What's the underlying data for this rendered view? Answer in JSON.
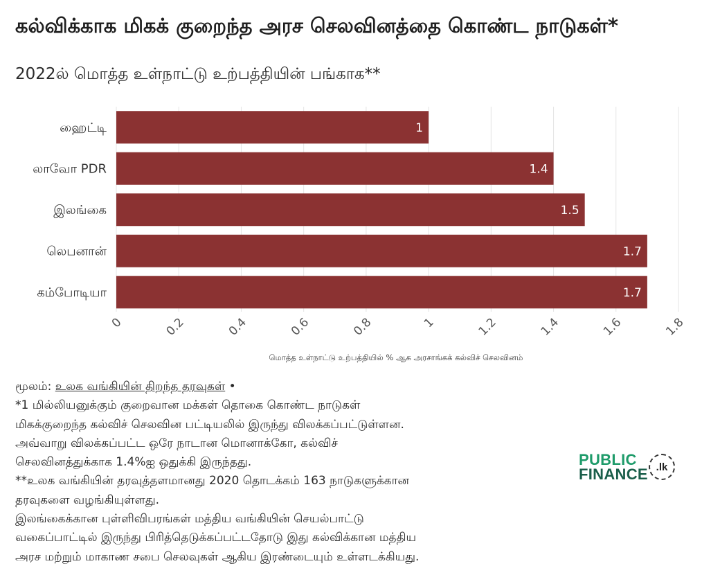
{
  "header": {
    "title": "கல்விக்காக மிகக் குறைந்த அரச செலவினத்தை கொண்ட நாடுகள்*",
    "subtitle": "2022ல் மொத்த உள்நாட்டு உற்பத்தியின் பங்காக**"
  },
  "chart_data": {
    "type": "bar",
    "orientation": "horizontal",
    "categories": [
      "ஹைட்டி",
      "லாவோ PDR",
      "இலங்கை",
      "லெபனான்",
      "கம்போடியா"
    ],
    "values": [
      1,
      1.4,
      1.5,
      1.7,
      1.7
    ],
    "value_labels": [
      "1",
      "1.4",
      "1.5",
      "1.7",
      "1.7"
    ],
    "xlabel": "மொத்த உள்நாட்டு உற்பத்தியில் % ஆக அரசாங்கக் கல்விச் செலவினம்",
    "ylabel": "",
    "xlim": [
      0,
      1.8
    ],
    "x_ticks": [
      "0",
      "0.2",
      "0.4",
      "0.6",
      "0.8",
      "1",
      "1.2",
      "1.4",
      "1.6",
      "1.8"
    ],
    "grid": true,
    "bar_color": "#8b3232",
    "label_color": "#ffffff"
  },
  "notes": {
    "source_prefix": "மூலம்: ",
    "source_link": "உலக வங்கியின் திறந்த தரவுகள்",
    "source_suffix": " •",
    "lines": [
      "*1 மில்லியனுக்கும் குறைவான மக்கள் தொகை கொண்ட நாடுகள்",
      "மிகக்குறைந்த கல்விச் செலவின பட்டியலில் இருந்து விலக்கப்பட்டுள்ளன.",
      "அவ்வாறு விலக்கப்பட்ட ஒரே நாடான மொனாக்கோ, கல்விச்",
      "செலவினத்துக்காக 1.4%ஐ ஒதுக்கி இருந்தது.",
      "**உலக வங்கியின் தரவுத்தளமானது 2020 தொடக்கம் 163 நாடுகளுக்கான",
      "தரவுகளை வழங்கியுள்ளது.",
      "இலங்கைக்கான புள்ளிவிபரங்கள் மத்திய வங்கியின் செயல்பாட்டு",
      "வகைப்பாட்டில் இருந்து பிரித்தெடுக்கப்பட்டதோடு இது கல்விக்கான மத்திய",
      "அரச மற்றும் மாகாண சபை செலவுகள் ஆகிய இரண்டையும் உள்ளடக்கியது."
    ]
  },
  "logo": {
    "word1": "PUBLIC",
    "word2": "FINANCE",
    "badge": ".lk",
    "color_primary": "#1e9b6a",
    "color_dark": "#1a5e4a"
  }
}
